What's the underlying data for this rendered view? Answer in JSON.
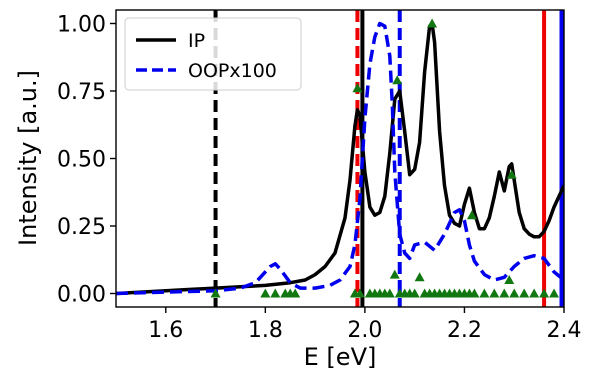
{
  "chart_data": {
    "type": "line",
    "xlabel": "E [eV]",
    "ylabel": "Intensity [a.u.]",
    "xlim": [
      1.5,
      2.4
    ],
    "ylim": [
      -0.05,
      1.05
    ],
    "x_ticks": [
      1.6,
      1.8,
      2.0,
      2.2,
      2.4
    ],
    "x_tick_labels": [
      "1.6",
      "1.8",
      "2.0",
      "2.2",
      "2.4"
    ],
    "y_ticks": [
      0.0,
      0.25,
      0.5,
      0.75,
      1.0
    ],
    "y_tick_labels": [
      "0.00",
      "0.25",
      "0.50",
      "0.75",
      "1.00"
    ],
    "legend_position": "top-left",
    "grid": false,
    "series": [
      {
        "name": "IP",
        "color": "#000000",
        "style": "solid",
        "x": [
          1.5,
          1.55,
          1.6,
          1.65,
          1.7,
          1.75,
          1.8,
          1.85,
          1.88,
          1.9,
          1.92,
          1.94,
          1.96,
          1.97,
          1.98,
          1.985,
          1.99,
          2.0,
          2.01,
          2.02,
          2.03,
          2.04,
          2.05,
          2.06,
          2.07,
          2.08,
          2.09,
          2.1,
          2.11,
          2.12,
          2.13,
          2.135,
          2.14,
          2.15,
          2.16,
          2.17,
          2.18,
          2.19,
          2.2,
          2.21,
          2.22,
          2.23,
          2.24,
          2.25,
          2.26,
          2.27,
          2.28,
          2.29,
          2.295,
          2.3,
          2.31,
          2.32,
          2.33,
          2.34,
          2.35,
          2.36,
          2.37,
          2.38,
          2.39,
          2.4
        ],
        "y": [
          0.0,
          0.005,
          0.01,
          0.015,
          0.02,
          0.025,
          0.03,
          0.04,
          0.05,
          0.07,
          0.1,
          0.15,
          0.28,
          0.42,
          0.62,
          0.68,
          0.66,
          0.45,
          0.32,
          0.29,
          0.3,
          0.36,
          0.52,
          0.72,
          0.75,
          0.6,
          0.44,
          0.46,
          0.56,
          0.82,
          0.99,
          1.0,
          0.93,
          0.6,
          0.4,
          0.29,
          0.26,
          0.25,
          0.33,
          0.39,
          0.3,
          0.24,
          0.24,
          0.28,
          0.36,
          0.45,
          0.38,
          0.47,
          0.48,
          0.42,
          0.3,
          0.24,
          0.22,
          0.21,
          0.21,
          0.23,
          0.27,
          0.32,
          0.36,
          0.4
        ]
      },
      {
        "name": "OOPx100",
        "color": "#0000ee",
        "style": "dashed",
        "x": [
          1.5,
          1.6,
          1.7,
          1.75,
          1.78,
          1.8,
          1.81,
          1.82,
          1.83,
          1.85,
          1.87,
          1.9,
          1.93,
          1.95,
          1.97,
          1.98,
          1.99,
          2.0,
          2.01,
          2.02,
          2.03,
          2.04,
          2.05,
          2.055,
          2.06,
          2.07,
          2.08,
          2.09,
          2.1,
          2.12,
          2.14,
          2.16,
          2.18,
          2.19,
          2.2,
          2.21,
          2.22,
          2.24,
          2.26,
          2.28,
          2.3,
          2.32,
          2.34,
          2.36,
          2.38,
          2.4
        ],
        "y": [
          0.0,
          0.005,
          0.01,
          0.02,
          0.04,
          0.08,
          0.1,
          0.11,
          0.09,
          0.04,
          0.02,
          0.02,
          0.03,
          0.05,
          0.1,
          0.18,
          0.35,
          0.65,
          0.85,
          0.95,
          1.0,
          0.99,
          0.88,
          0.7,
          0.45,
          0.22,
          0.15,
          0.13,
          0.18,
          0.19,
          0.16,
          0.22,
          0.3,
          0.31,
          0.27,
          0.18,
          0.12,
          0.07,
          0.05,
          0.06,
          0.1,
          0.13,
          0.14,
          0.13,
          0.08,
          0.05
        ]
      }
    ],
    "markers": {
      "color": "#117711",
      "shape": "triangle",
      "x": [
        1.7,
        1.8,
        1.82,
        1.84,
        1.85,
        1.86,
        1.98,
        1.985,
        1.99,
        2.01,
        2.02,
        2.03,
        2.04,
        2.05,
        2.06,
        2.065,
        2.07,
        2.08,
        2.09,
        2.1,
        2.11,
        2.12,
        2.13,
        2.135,
        2.14,
        2.15,
        2.16,
        2.17,
        2.18,
        2.19,
        2.2,
        2.21,
        2.215,
        2.22,
        2.24,
        2.26,
        2.28,
        2.29,
        2.295,
        2.3,
        2.32,
        2.34,
        2.36,
        2.38
      ],
      "y": [
        0.0,
        0.0,
        0.0,
        0.0,
        0.0,
        0.0,
        0.0,
        0.76,
        0.0,
        0.0,
        0.0,
        0.0,
        0.0,
        0.0,
        0.07,
        0.79,
        0.0,
        0.0,
        0.0,
        0.0,
        0.06,
        0.0,
        0.0,
        1.0,
        0.0,
        0.0,
        0.0,
        0.0,
        0.0,
        0.0,
        0.0,
        0.0,
        0.29,
        0.0,
        0.0,
        0.0,
        0.0,
        0.05,
        0.44,
        0.0,
        0.0,
        0.0,
        0.0,
        0.0
      ]
    },
    "vertical_lines": [
      {
        "x": 1.7,
        "color": "#000000",
        "style": "dashed"
      },
      {
        "x": 1.985,
        "color": "#ee0000",
        "style": "dashed"
      },
      {
        "x": 1.995,
        "color": "#000000",
        "style": "solid"
      },
      {
        "x": 2.07,
        "color": "#0000ee",
        "style": "dashed"
      },
      {
        "x": 2.36,
        "color": "#ee0000",
        "style": "solid"
      },
      {
        "x": 2.395,
        "color": "#0000ee",
        "style": "solid"
      }
    ]
  }
}
